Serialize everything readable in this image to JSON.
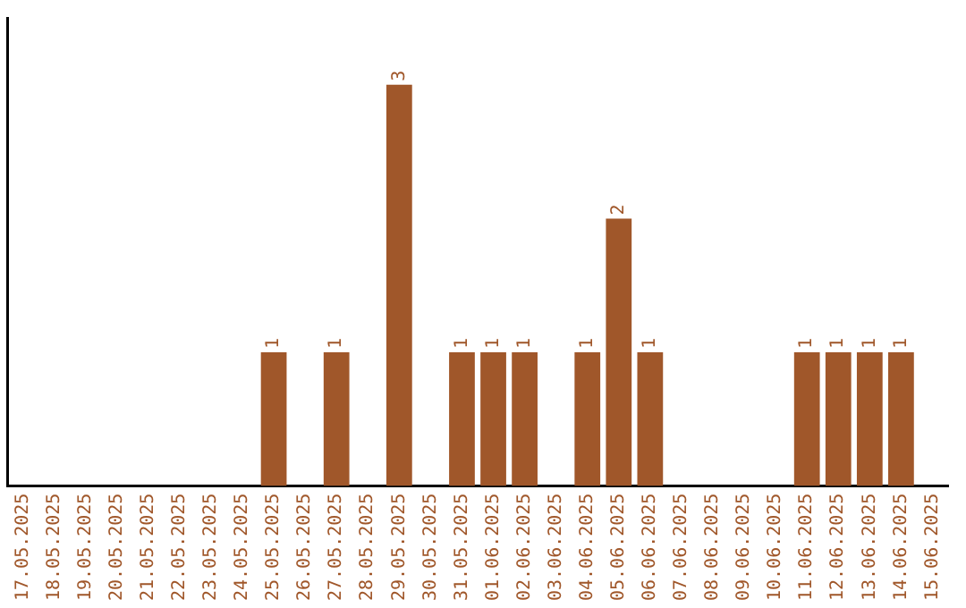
{
  "chart_data": {
    "type": "bar",
    "categories": [
      "17.05.2025",
      "18.05.2025",
      "19.05.2025",
      "20.05.2025",
      "21.05.2025",
      "22.05.2025",
      "23.05.2025",
      "24.05.2025",
      "25.05.2025",
      "26.05.2025",
      "27.05.2025",
      "28.05.2025",
      "29.05.2025",
      "30.05.2025",
      "31.05.2025",
      "01.06.2025",
      "02.06.2025",
      "03.06.2025",
      "04.06.2025",
      "05.06.2025",
      "06.06.2025",
      "07.06.2025",
      "08.06.2025",
      "09.06.2025",
      "10.06.2025",
      "11.06.2025",
      "12.06.2025",
      "13.06.2025",
      "14.06.2025",
      "15.06.2025"
    ],
    "values": [
      0,
      0,
      0,
      0,
      0,
      0,
      0,
      0,
      1,
      0,
      1,
      0,
      3,
      0,
      1,
      1,
      1,
      0,
      1,
      2,
      1,
      0,
      0,
      0,
      0,
      1,
      1,
      1,
      1,
      0
    ],
    "value_labels": [
      null,
      null,
      null,
      null,
      null,
      null,
      null,
      null,
      "1",
      null,
      "1",
      null,
      "3",
      null,
      "1",
      "1",
      "1",
      null,
      "1",
      "2",
      "1",
      null,
      null,
      null,
      null,
      "1",
      "1",
      "1",
      "1",
      null
    ],
    "color": "#a0572a",
    "tick_labels": "x",
    "grid": false,
    "legend": false
  }
}
